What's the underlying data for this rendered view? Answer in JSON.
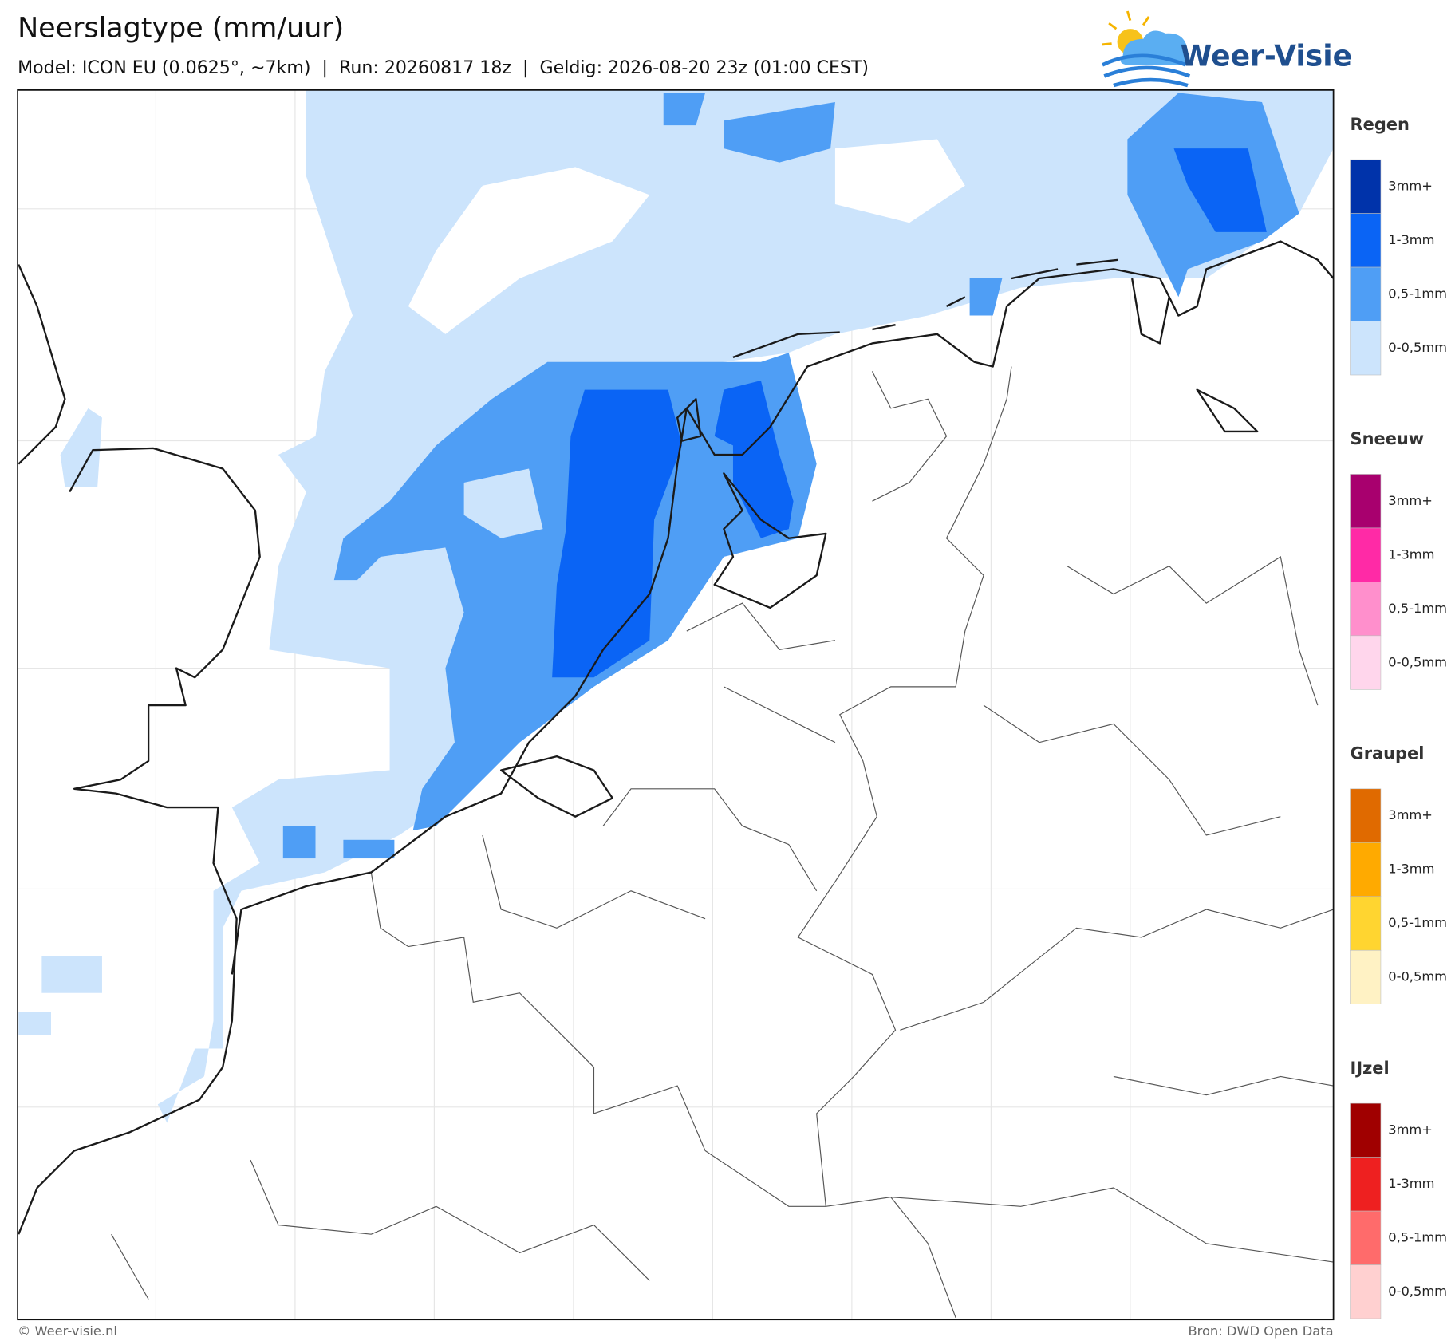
{
  "header": {
    "title": "Neerslagtype (mm/uur)",
    "subtitle": "Model: ICON EU (0.0625°, ~7km)  |  Run: 20260817 18z  |  Geldig: 2026-08-20 23z (01:00 CEST)"
  },
  "logo": {
    "text": "Weer-Visie"
  },
  "legend": [
    {
      "title": "Regen",
      "items": [
        {
          "label": "3mm+",
          "color": "#0033aa"
        },
        {
          "label": "1-3mm",
          "color": "#0a64f5"
        },
        {
          "label": "0,5-1mm",
          "color": "#4f9ef5"
        },
        {
          "label": "0-0,5mm",
          "color": "#cce4fc"
        }
      ]
    },
    {
      "title": "Sneeuw",
      "items": [
        {
          "label": "3mm+",
          "color": "#a8006e"
        },
        {
          "label": "1-3mm",
          "color": "#ff2aa6"
        },
        {
          "label": "0,5-1mm",
          "color": "#ff8fcc"
        },
        {
          "label": "0-0,5mm",
          "color": "#ffd6ec"
        }
      ]
    },
    {
      "title": "Graupel",
      "items": [
        {
          "label": "3mm+",
          "color": "#e06a00"
        },
        {
          "label": "1-3mm",
          "color": "#ffaa00"
        },
        {
          "label": "0,5-1mm",
          "color": "#ffd530"
        },
        {
          "label": "0-0,5mm",
          "color": "#fff2c4"
        }
      ]
    },
    {
      "title": "IJzel",
      "items": [
        {
          "label": "3mm+",
          "color": "#a00000"
        },
        {
          "label": "1-3mm",
          "color": "#ee2020"
        },
        {
          "label": "0,5-1mm",
          "color": "#ff6b6b"
        },
        {
          "label": "0-0,5mm",
          "color": "#ffd0d0"
        }
      ]
    }
  ],
  "footer": {
    "left": "© Weer-visie.nl",
    "right": "Bron: DWD Open Data"
  }
}
